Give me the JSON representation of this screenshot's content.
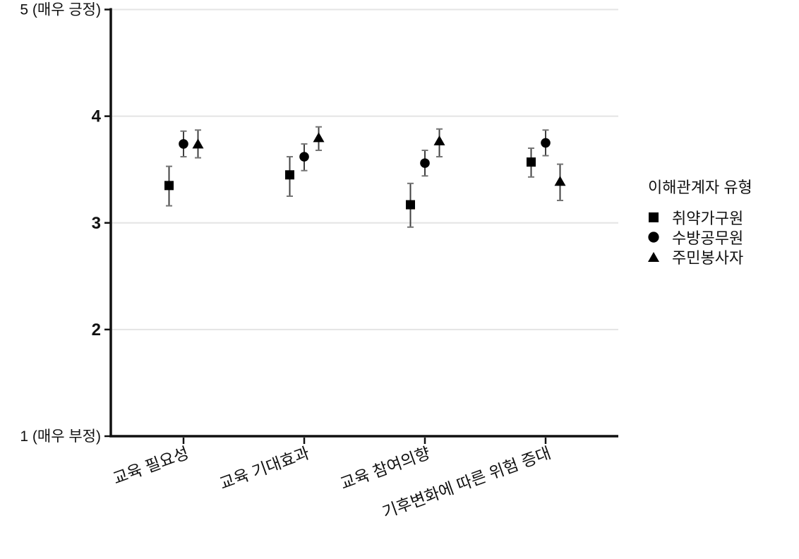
{
  "chart_data": {
    "type": "scatter",
    "subtype": "dot-plot-with-error-bars",
    "title": "",
    "xlabel": "",
    "ylabel": "",
    "categories": [
      "교육 필요성",
      "교육 기대효과",
      "교육 참여의향",
      "기후변화에 따른 위험 증대"
    ],
    "y_axis": {
      "min": 1,
      "max": 5,
      "tick_values": [
        5,
        4,
        3,
        2,
        1
      ],
      "tick_labels": [
        "5 (매우 긍정)",
        "4",
        "3",
        "2",
        "1 (매우 부정)"
      ]
    },
    "grid": true,
    "legend_position": "right",
    "legend": {
      "title": "이해관계자 유형",
      "entries": [
        {
          "label": "취약가구원",
          "marker": "square"
        },
        {
          "label": "수방공무원",
          "marker": "circle"
        },
        {
          "label": "주민봉사자",
          "marker": "triangle"
        }
      ]
    },
    "series": [
      {
        "name": "취약가구원",
        "marker": "square",
        "values": [
          3.35,
          3.45,
          3.17,
          3.57
        ],
        "ci_low": [
          3.16,
          3.25,
          2.96,
          3.43
        ],
        "ci_high": [
          3.53,
          3.62,
          3.37,
          3.7
        ]
      },
      {
        "name": "수방공무원",
        "marker": "circle",
        "values": [
          3.74,
          3.62,
          3.56,
          3.75
        ],
        "ci_low": [
          3.62,
          3.49,
          3.44,
          3.63
        ],
        "ci_high": [
          3.86,
          3.74,
          3.68,
          3.87
        ]
      },
      {
        "name": "주민봉사자",
        "marker": "triangle",
        "values": [
          3.74,
          3.8,
          3.77,
          3.39
        ],
        "ci_low": [
          3.61,
          3.68,
          3.62,
          3.21
        ],
        "ci_high": [
          3.87,
          3.9,
          3.88,
          3.55
        ]
      }
    ],
    "colors": {
      "marker": "#000000",
      "error_bar": "#404040",
      "error_cap": "#757575",
      "axis": "#111111",
      "gridline": "#e4e4e4",
      "text": "#111111"
    }
  }
}
